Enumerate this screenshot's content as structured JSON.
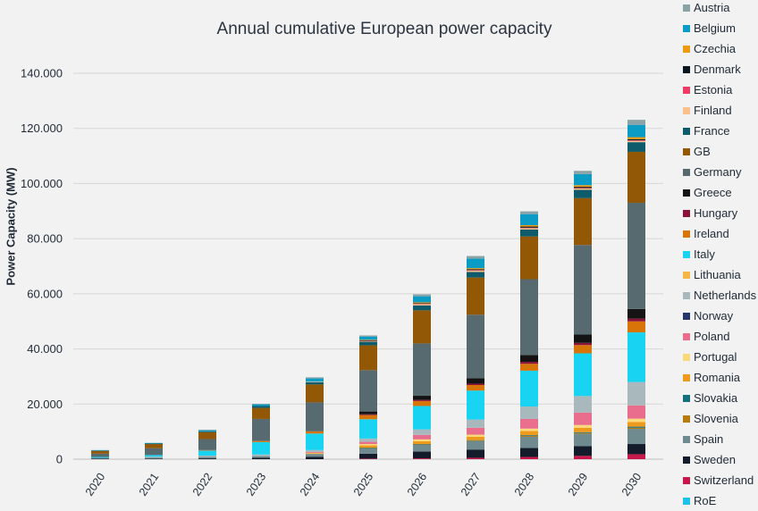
{
  "chart_data": {
    "type": "bar",
    "stacked": true,
    "title": "Annual cumulative European power capacity",
    "xlabel": "",
    "ylabel": "Power Capacity (MW)",
    "ylim": [
      0,
      140000
    ],
    "yticks": [
      "0",
      "20.000",
      "40.000",
      "60.000",
      "80.000",
      "100.000",
      "120.000",
      "140.000"
    ],
    "grid": true,
    "legend_position": "right",
    "categories": [
      "2020",
      "2021",
      "2022",
      "2023",
      "2024",
      "2025",
      "2026",
      "2027",
      "2028",
      "2029",
      "2030"
    ],
    "series": [
      {
        "name": "RoE",
        "color": "#19c2e6",
        "values": [
          0,
          0,
          0,
          0,
          0,
          0,
          0,
          0,
          0,
          0,
          0
        ]
      },
      {
        "name": "Switzerland",
        "color": "#c8174a",
        "values": [
          0,
          0,
          0,
          0,
          0,
          200,
          300,
          500,
          800,
          1200,
          1800
        ]
      },
      {
        "name": "Sweden",
        "color": "#141c2c",
        "values": [
          200,
          200,
          300,
          500,
          900,
          1800,
          2500,
          3000,
          3300,
          3500,
          3700
        ]
      },
      {
        "name": "Spain",
        "color": "#6f8b8f",
        "values": [
          300,
          400,
          500,
          600,
          1000,
          2000,
          2500,
          3000,
          4000,
          4500,
          5500
        ]
      },
      {
        "name": "Slovenia",
        "color": "#b77a0c",
        "values": [
          0,
          0,
          0,
          0,
          0,
          100,
          100,
          200,
          300,
          300,
          400
        ]
      },
      {
        "name": "Slovakia",
        "color": "#17707e",
        "values": [
          0,
          0,
          0,
          0,
          0,
          100,
          100,
          200,
          300,
          300,
          400
        ]
      },
      {
        "name": "Romania",
        "color": "#ef9a1c",
        "values": [
          0,
          0,
          0,
          0,
          200,
          800,
          1000,
          1200,
          1500,
          1600,
          1700
        ]
      },
      {
        "name": "Portugal",
        "color": "#fad97a",
        "values": [
          0,
          0,
          0,
          0,
          200,
          500,
          700,
          800,
          900,
          1000,
          1200
        ]
      },
      {
        "name": "Poland",
        "color": "#e96d8c",
        "values": [
          0,
          0,
          0,
          0,
          300,
          800,
          1600,
          2500,
          3500,
          4500,
          4800
        ]
      },
      {
        "name": "Norway",
        "color": "#26366b",
        "values": [
          0,
          0,
          0,
          0,
          0,
          0,
          0,
          0,
          0,
          0,
          0
        ]
      },
      {
        "name": "Netherlands",
        "color": "#a9b8bd",
        "values": [
          0,
          300,
          500,
          600,
          700,
          1200,
          2000,
          3000,
          4500,
          6000,
          8500
        ]
      },
      {
        "name": "Lithuania",
        "color": "#f4b646",
        "values": [
          0,
          0,
          0,
          0,
          0,
          0,
          0,
          0,
          0,
          0,
          0
        ]
      },
      {
        "name": "Italy",
        "color": "#19d3f3",
        "values": [
          300,
          600,
          1800,
          4500,
          6000,
          7000,
          8500,
          10500,
          13000,
          15500,
          18000
        ]
      },
      {
        "name": "Ireland",
        "color": "#d87508",
        "values": [
          0,
          0,
          200,
          400,
          800,
          1500,
          1800,
          2000,
          2500,
          3000,
          4000
        ]
      },
      {
        "name": "Hungary",
        "color": "#8c1338",
        "values": [
          0,
          0,
          0,
          0,
          0,
          300,
          400,
          500,
          700,
          800,
          1000
        ]
      },
      {
        "name": "Greece",
        "color": "#141414",
        "values": [
          0,
          0,
          0,
          0,
          0,
          1000,
          1500,
          2000,
          2500,
          3000,
          3500
        ]
      },
      {
        "name": "Germany",
        "color": "#566a70",
        "values": [
          1200,
          2500,
          4000,
          8000,
          10500,
          15000,
          19000,
          23000,
          27500,
          32500,
          38500
        ]
      },
      {
        "name": "GB",
        "color": "#925806",
        "values": [
          1000,
          1500,
          2500,
          4000,
          6500,
          9000,
          12000,
          13500,
          15500,
          17000,
          18500
        ]
      },
      {
        "name": "France",
        "color": "#0d5b6b",
        "values": [
          200,
          200,
          300,
          700,
          800,
          1300,
          1800,
          2000,
          2500,
          3000,
          3500
        ]
      },
      {
        "name": "Finland",
        "color": "#f8c08a",
        "values": [
          0,
          0,
          0,
          0,
          200,
          300,
          500,
          500,
          500,
          500,
          500
        ]
      },
      {
        "name": "Estonia",
        "color": "#ee3b64",
        "values": [
          0,
          0,
          0,
          0,
          0,
          100,
          100,
          200,
          200,
          200,
          200
        ]
      },
      {
        "name": "Denmark",
        "color": "#0b1620",
        "values": [
          0,
          0,
          0,
          0,
          0,
          100,
          200,
          300,
          400,
          400,
          400
        ]
      },
      {
        "name": "Czechia",
        "color": "#ee9a0c",
        "values": [
          0,
          0,
          0,
          0,
          0,
          200,
          300,
          400,
          500,
          600,
          700
        ]
      },
      {
        "name": "Belgium",
        "color": "#0a9cc4",
        "values": [
          100,
          200,
          400,
          600,
          1200,
          1200,
          2200,
          3500,
          4000,
          4000,
          4500
        ]
      },
      {
        "name": "Austria",
        "color": "#8ba3a6",
        "values": [
          0,
          0,
          200,
          200,
          400,
          400,
          700,
          900,
          1000,
          1200,
          1800
        ]
      }
    ],
    "legend_order": [
      "Austria",
      "Belgium",
      "Czechia",
      "Denmark",
      "Estonia",
      "Finland",
      "France",
      "GB",
      "Germany",
      "Greece",
      "Hungary",
      "Ireland",
      "Italy",
      "Lithuania",
      "Netherlands",
      "Norway",
      "Poland",
      "Portugal",
      "Romania",
      "Slovakia",
      "Slovenia",
      "Spain",
      "Sweden",
      "Switzerland",
      "RoE"
    ]
  }
}
